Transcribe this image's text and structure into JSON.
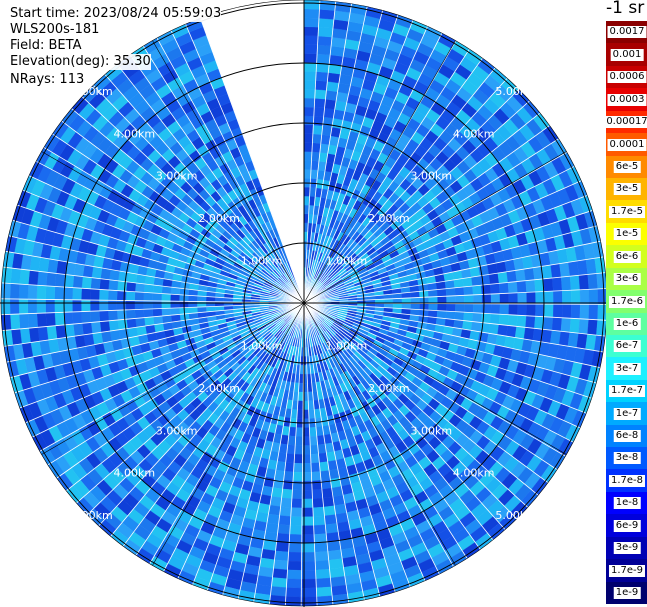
{
  "header": {
    "start_time": "Start time: 2023/08/24 05:59:03",
    "instrument": "WLS200s-181",
    "field": "Field: BETA",
    "elevation": "Elevation(deg): 35.30",
    "nrays": "NRays: 113"
  },
  "colorbar": {
    "unit": "-1 sr",
    "levels": [
      {
        "label": "0.0017",
        "color": "#8b0000"
      },
      {
        "label": "0.001",
        "color": "#a80000"
      },
      {
        "label": "0.0006",
        "color": "#c80000"
      },
      {
        "label": "0.0003",
        "color": "#e80000"
      },
      {
        "label": "0.00017",
        "color": "#ff2a00"
      },
      {
        "label": "0.0001",
        "color": "#ff5a00"
      },
      {
        "label": "6e-5",
        "color": "#ff8a00"
      },
      {
        "label": "3e-5",
        "color": "#ffb400"
      },
      {
        "label": "1.7e-5",
        "color": "#ffdc00"
      },
      {
        "label": "1e-5",
        "color": "#fcff00"
      },
      {
        "label": "6e-6",
        "color": "#d2ff1e"
      },
      {
        "label": "3e-6",
        "color": "#aaff46"
      },
      {
        "label": "1.7e-6",
        "color": "#82ff6e"
      },
      {
        "label": "1e-6",
        "color": "#5effa0"
      },
      {
        "label": "6e-7",
        "color": "#3cffd2"
      },
      {
        "label": "3e-7",
        "color": "#1ef0ff"
      },
      {
        "label": "1.7e-7",
        "color": "#00d2ff"
      },
      {
        "label": "1e-7",
        "color": "#00aaff"
      },
      {
        "label": "6e-8",
        "color": "#0082ff"
      },
      {
        "label": "3e-8",
        "color": "#005aff"
      },
      {
        "label": "1.7e-8",
        "color": "#0032ff"
      },
      {
        "label": "1e-8",
        "color": "#0000ff"
      },
      {
        "label": "6e-9",
        "color": "#0000dc"
      },
      {
        "label": "3e-9",
        "color": "#0000b4"
      },
      {
        "label": "1.7e-9",
        "color": "#000096"
      },
      {
        "label": "1e-9",
        "color": "#00006e"
      }
    ]
  },
  "chart_data": {
    "type": "heatmap",
    "projection": "polar PPI scan (top view)",
    "field": "BETA",
    "elevation_deg": 35.3,
    "n_rays": 113,
    "range_rings_km": [
      1,
      2,
      3,
      4,
      5
    ],
    "range_ring_labels": [
      "1.00km",
      "2.00km",
      "3.00km",
      "4.00km",
      "5.00km"
    ],
    "max_range_km": 5.0,
    "missing_azimuth_deg": [
      340,
      360
    ],
    "gate_values_observed_range": [
      "6e-9",
      "3e-7"
    ],
    "dominant_values": [
      "1e-8",
      "6e-8",
      "1e-7"
    ]
  }
}
